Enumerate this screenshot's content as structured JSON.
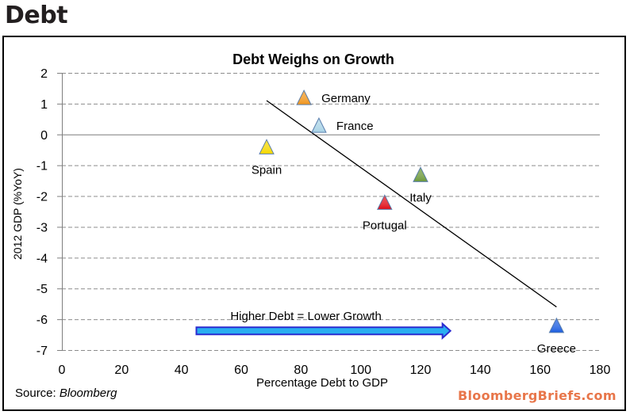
{
  "header": {
    "title": "Debt"
  },
  "footer": {
    "source_label": "Source:",
    "source_name": "Bloomberg",
    "brand": "BloombergBriefs.com"
  },
  "chart_data": {
    "type": "scatter",
    "title": "Debt Weighs on Growth",
    "xlabel": "Percentage Debt to GDP",
    "ylabel": "2012 GDP (%YoY)",
    "xlim": [
      0,
      180
    ],
    "ylim": [
      -7,
      2
    ],
    "xticks": [
      0,
      20,
      40,
      60,
      80,
      100,
      120,
      140,
      160,
      180
    ],
    "yticks": [
      2,
      1,
      0,
      -1,
      -2,
      -3,
      -4,
      -5,
      -6,
      -7
    ],
    "grid": "horizontal-dashed",
    "points": [
      {
        "label": "Germany",
        "x": 81,
        "y": 1.2,
        "color": "#f0961e",
        "label_pos": "right"
      },
      {
        "label": "France",
        "x": 86,
        "y": 0.3,
        "color": "#a9d3e6",
        "label_pos": "right"
      },
      {
        "label": "Spain",
        "x": 68.5,
        "y": -0.4,
        "color": "#f5d800",
        "label_pos": "below"
      },
      {
        "label": "Italy",
        "x": 120,
        "y": -1.3,
        "color": "#6e9a3c",
        "label_pos": "below"
      },
      {
        "label": "Portugal",
        "x": 108,
        "y": -2.2,
        "color": "#e0101a",
        "label_pos": "below"
      },
      {
        "label": "Greece",
        "x": 165.5,
        "y": -6.2,
        "color": "#1f5fe0",
        "label_pos": "below"
      }
    ],
    "trendline": {
      "x": [
        68.5,
        165.5
      ],
      "y": [
        1.1,
        -5.6
      ]
    },
    "annotation": {
      "text": "Higher Debt = Lower Growth",
      "arrow_from": {
        "x": 45,
        "y": -6.3
      },
      "arrow_to": {
        "x": 130,
        "y": -6.3
      }
    }
  }
}
